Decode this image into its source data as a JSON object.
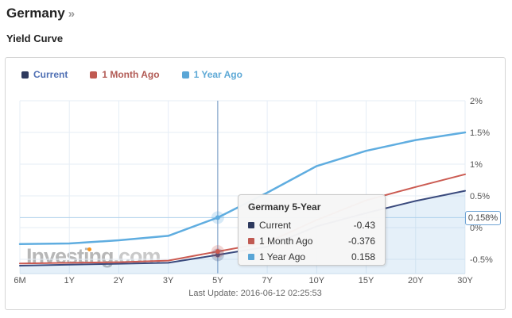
{
  "page": {
    "title": "Germany",
    "title_arrow": "»",
    "subtitle": "Yield Curve"
  },
  "legend": {
    "items": [
      {
        "label": "Current",
        "swatch_color": "#2e3a5e",
        "text_color": "#5070b4"
      },
      {
        "label": "1 Month Ago",
        "swatch_color": "#c05a52",
        "text_color": "#b25b55"
      },
      {
        "label": "1 Year Ago",
        "swatch_color": "#5aa6d6",
        "text_color": "#5ea9d6"
      }
    ]
  },
  "tooltip": {
    "title": "Germany 5-Year",
    "rows": [
      {
        "label": "Current",
        "value": "-0.43",
        "color": "#2e3a5e"
      },
      {
        "label": "1 Month Ago",
        "value": "-0.376",
        "color": "#c05a52"
      },
      {
        "label": "1 Year Ago",
        "value": "0.158",
        "color": "#5aa6d6"
      }
    ]
  },
  "crosshair_label": {
    "text": "0.158%",
    "border_color": "#6ea3d4"
  },
  "watermark": {
    "text_bold": "Investing",
    "text_light": ".com",
    "dot_color": "#f7941e"
  },
  "footer": {
    "last_update": "Last Update: 2016-06-12 02:25:53"
  },
  "chart_data": {
    "type": "line",
    "title": "Germany Yield Curve",
    "categories": [
      "6M",
      "1Y",
      "2Y",
      "3Y",
      "5Y",
      "7Y",
      "10Y",
      "15Y",
      "20Y",
      "30Y"
    ],
    "series": [
      {
        "name": "Current",
        "color": "#3a4a7d",
        "area": true,
        "values": [
          -0.6,
          -0.585,
          -0.57,
          -0.555,
          -0.43,
          -0.3,
          0.02,
          0.23,
          0.42,
          0.58
        ]
      },
      {
        "name": "1 Month Ago",
        "color": "#cb5b52",
        "area": false,
        "values": [
          -0.565,
          -0.555,
          -0.545,
          -0.52,
          -0.376,
          -0.235,
          0.12,
          0.43,
          0.64,
          0.84
        ]
      },
      {
        "name": "1 Year Ago",
        "color": "#5fade0",
        "area": false,
        "values": [
          -0.26,
          -0.25,
          -0.2,
          -0.13,
          0.158,
          0.55,
          0.97,
          1.21,
          1.38,
          1.5
        ]
      }
    ],
    "ylim": [
      -0.725,
      2.025
    ],
    "yticks": [
      2,
      1.5,
      1,
      0.5,
      0,
      -0.5
    ],
    "ytick_labels": [
      "2%",
      "1.5%",
      "1%",
      "0.5%",
      "0%",
      "-0.5%"
    ],
    "grid": true,
    "legend_position": "top",
    "highlight": {
      "category": "5Y",
      "index": 4,
      "value": 0.158
    },
    "colors": {
      "grid": "#e6eef6",
      "axis_line": "#c9dcec",
      "crosshair_v": "#6d94c2",
      "crosshair_h": "#aed1ec",
      "area_fill": "rgba(124,181,226,0.20)",
      "tick_text": "#555"
    }
  }
}
